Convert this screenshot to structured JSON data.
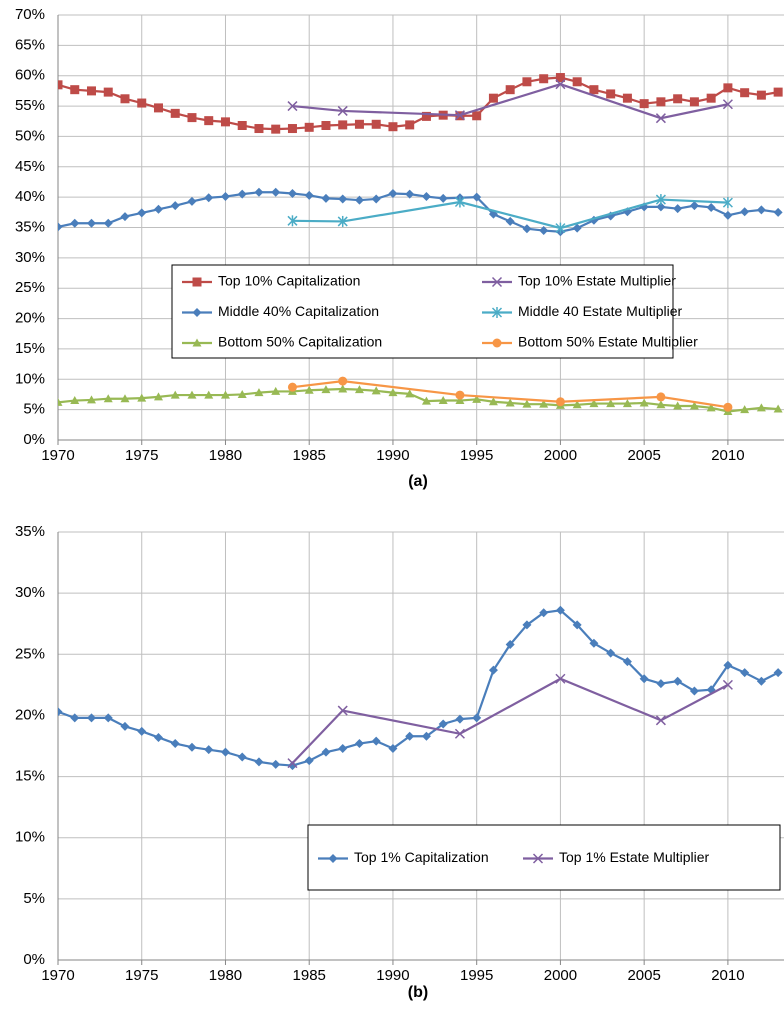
{
  "chart_data": [
    {
      "type": "line",
      "xlabel": "(a)",
      "xlim": [
        1970,
        2013.35
      ],
      "ylim": [
        0,
        70
      ],
      "xticks": [
        1970,
        1975,
        1980,
        1985,
        1990,
        1995,
        2000,
        2005,
        2010
      ],
      "yticks": [
        {
          "value": 0,
          "label": "0%"
        },
        {
          "value": 5,
          "label": "5%"
        },
        {
          "value": 10,
          "label": "10%"
        },
        {
          "value": 15,
          "label": "15%"
        },
        {
          "value": 20,
          "label": "20%"
        },
        {
          "value": 25,
          "label": "25%"
        },
        {
          "value": 30,
          "label": "30%"
        },
        {
          "value": 35,
          "label": "35%"
        },
        {
          "value": 40,
          "label": "40%"
        },
        {
          "value": 45,
          "label": "45%"
        },
        {
          "value": 50,
          "label": "50%"
        },
        {
          "value": 55,
          "label": "55%"
        },
        {
          "value": 60,
          "label": "60%"
        },
        {
          "value": 65,
          "label": "65%"
        },
        {
          "value": 70,
          "label": "70%"
        }
      ],
      "grid": true,
      "legend": "center",
      "series": [
        {
          "name": "Top 10% Capitalization",
          "color": "#be4b48",
          "marker": "square",
          "x": [
            1970,
            1971,
            1972,
            1973,
            1974,
            1975,
            1976,
            1977,
            1978,
            1979,
            1980,
            1981,
            1982,
            1983,
            1984,
            1985,
            1986,
            1987,
            1988,
            1989,
            1990,
            1991,
            1992,
            1993,
            1994,
            1995,
            1996,
            1997,
            1998,
            1999,
            2000,
            2001,
            2002,
            2003,
            2004,
            2005,
            2006,
            2007,
            2008,
            2009,
            2010,
            2011,
            2012,
            2013
          ],
          "values": [
            58.5,
            57.7,
            57.5,
            57.3,
            56.2,
            55.5,
            54.7,
            53.8,
            53.1,
            52.6,
            52.4,
            51.8,
            51.3,
            51.2,
            51.3,
            51.5,
            51.8,
            51.9,
            52.0,
            52.0,
            51.6,
            51.9,
            53.3,
            53.5,
            53.4,
            53.4,
            56.3,
            57.7,
            59.0,
            59.5,
            59.7,
            59.0,
            57.7,
            57.0,
            56.3,
            55.4,
            55.7,
            56.2,
            55.7,
            56.3,
            58.0,
            57.2,
            56.8,
            57.3
          ]
        },
        {
          "name": "Top 10% Estate Multiplier",
          "color": "#7f5fa0",
          "marker": "x",
          "x": [
            1984,
            1987,
            1994,
            2000,
            2006,
            2010
          ],
          "values": [
            55.0,
            54.2,
            53.5,
            58.6,
            53.0,
            55.3
          ]
        },
        {
          "name": "Middle 40% Capitalization",
          "color": "#4a7ebb",
          "marker": "diamond",
          "x": [
            1970,
            1971,
            1972,
            1973,
            1974,
            1975,
            1976,
            1977,
            1978,
            1979,
            1980,
            1981,
            1982,
            1983,
            1984,
            1985,
            1986,
            1987,
            1988,
            1989,
            1990,
            1991,
            1992,
            1993,
            1994,
            1995,
            1996,
            1997,
            1998,
            1999,
            2000,
            2001,
            2002,
            2003,
            2004,
            2005,
            2006,
            2007,
            2008,
            2009,
            2010,
            2011,
            2012,
            2013
          ],
          "values": [
            35.1,
            35.7,
            35.7,
            35.7,
            36.8,
            37.4,
            38.0,
            38.6,
            39.3,
            39.9,
            40.1,
            40.5,
            40.8,
            40.8,
            40.6,
            40.3,
            39.8,
            39.7,
            39.5,
            39.7,
            40.6,
            40.5,
            40.1,
            39.8,
            39.9,
            40.0,
            37.2,
            36.0,
            34.8,
            34.5,
            34.3,
            34.9,
            36.2,
            36.9,
            37.6,
            38.4,
            38.4,
            38.1,
            38.6,
            38.3,
            37.0,
            37.6,
            37.9,
            37.5
          ]
        },
        {
          "name": "Middle 40 Estate Multiplier",
          "color": "#4bacc6",
          "marker": "asterisk",
          "x": [
            1984,
            1987,
            1994,
            2000,
            2006,
            2010
          ],
          "values": [
            36.1,
            36.0,
            39.2,
            34.9,
            39.6,
            39.1
          ]
        },
        {
          "name": "Bottom 50% Capitalization",
          "color": "#98b954",
          "marker": "triangle",
          "x": [
            1970,
            1971,
            1972,
            1973,
            1974,
            1975,
            1976,
            1977,
            1978,
            1979,
            1980,
            1981,
            1982,
            1983,
            1984,
            1985,
            1986,
            1987,
            1988,
            1989,
            1990,
            1991,
            1992,
            1993,
            1994,
            1995,
            1996,
            1997,
            1998,
            1999,
            2000,
            2001,
            2002,
            2003,
            2004,
            2005,
            2006,
            2007,
            2008,
            2009,
            2010,
            2011,
            2012,
            2013
          ],
          "values": [
            6.2,
            6.5,
            6.6,
            6.8,
            6.8,
            6.9,
            7.1,
            7.4,
            7.4,
            7.4,
            7.4,
            7.5,
            7.8,
            8.0,
            8.0,
            8.2,
            8.3,
            8.4,
            8.3,
            8.1,
            7.8,
            7.6,
            6.4,
            6.5,
            6.5,
            6.7,
            6.3,
            6.1,
            5.9,
            5.9,
            5.7,
            5.8,
            6.0,
            6.0,
            6.0,
            6.1,
            5.8,
            5.6,
            5.6,
            5.3,
            4.7,
            5.0,
            5.3,
            5.1
          ]
        },
        {
          "name": "Bottom 50% Estate Multiplier",
          "color": "#f79646",
          "marker": "circle",
          "x": [
            1984,
            1987,
            1994,
            2000,
            2006,
            2010
          ],
          "values": [
            8.7,
            9.7,
            7.4,
            6.3,
            7.1,
            5.4
          ]
        }
      ]
    },
    {
      "type": "line",
      "xlabel": "(b)",
      "xlim": [
        1970,
        2013.35
      ],
      "ylim": [
        0,
        35
      ],
      "xticks": [
        1970,
        1975,
        1980,
        1985,
        1990,
        1995,
        2000,
        2005,
        2010
      ],
      "yticks": [
        {
          "value": 0,
          "label": "0%"
        },
        {
          "value": 5,
          "label": "5%"
        },
        {
          "value": 10,
          "label": "10%"
        },
        {
          "value": 15,
          "label": "15%"
        },
        {
          "value": 20,
          "label": "20%"
        },
        {
          "value": 25,
          "label": "25%"
        },
        {
          "value": 30,
          "label": "30%"
        },
        {
          "value": 35,
          "label": "35%"
        }
      ],
      "grid": true,
      "legend": "lower right",
      "series": [
        {
          "name": "Top 1% Capitalization",
          "color": "#4a7ebb",
          "marker": "diamond",
          "x": [
            1970,
            1971,
            1972,
            1973,
            1974,
            1975,
            1976,
            1977,
            1978,
            1979,
            1980,
            1981,
            1982,
            1983,
            1984,
            1985,
            1986,
            1987,
            1988,
            1989,
            1990,
            1991,
            1992,
            1993,
            1994,
            1995,
            1996,
            1997,
            1998,
            1999,
            2000,
            2001,
            2002,
            2003,
            2004,
            2005,
            2006,
            2007,
            2008,
            2009,
            2010,
            2011,
            2012,
            2013
          ],
          "values": [
            20.3,
            19.8,
            19.8,
            19.8,
            19.1,
            18.7,
            18.2,
            17.7,
            17.4,
            17.2,
            17.0,
            16.6,
            16.2,
            16.0,
            15.9,
            16.3,
            17.0,
            17.3,
            17.7,
            17.9,
            17.3,
            18.3,
            18.3,
            19.3,
            19.7,
            19.8,
            23.7,
            25.8,
            27.4,
            28.4,
            28.6,
            27.4,
            25.9,
            25.1,
            24.4,
            23.0,
            22.6,
            22.8,
            22.0,
            22.1,
            24.1,
            23.5,
            22.8,
            23.5
          ]
        },
        {
          "name": "Top 1% Estate Multiplier",
          "color": "#7f5fa0",
          "marker": "x",
          "x": [
            1984,
            1987,
            1994,
            2000,
            2006,
            2010
          ],
          "values": [
            16.1,
            20.4,
            18.5,
            23.0,
            19.6,
            22.5
          ]
        }
      ]
    }
  ]
}
